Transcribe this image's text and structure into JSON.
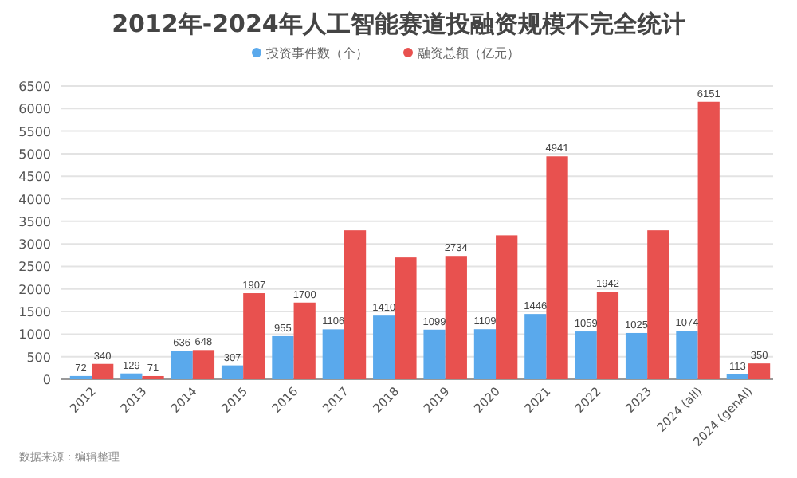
{
  "chart_data": {
    "type": "bar",
    "title": "2012年-2024年人工智能赛道投融资规模不完全统计",
    "categories": [
      "2012",
      "2013",
      "2014",
      "2015",
      "2016",
      "2017",
      "2018",
      "2019",
      "2020",
      "2021",
      "2022",
      "2023",
      "2024 (all)",
      "2024 (genAI)"
    ],
    "series": [
      {
        "name": "投资事件数（个）",
        "color": "#5aa9ec",
        "values": [
          72,
          129,
          636,
          307,
          955,
          1106,
          1410,
          1099,
          1109,
          1446,
          1059,
          1025,
          1074,
          113
        ],
        "value_labels": [
          "72",
          "129",
          "636",
          "307",
          "955",
          "1106",
          "1410",
          "1099",
          "1109",
          "1446",
          "1059",
          "1025",
          "1074",
          "113"
        ]
      },
      {
        "name": "融资总额（亿元）",
        "color": "#e8514f",
        "values": [
          340,
          71,
          648,
          1907,
          1700,
          3300,
          2700,
          2734,
          3190,
          4941,
          1942,
          3300,
          6151,
          350
        ],
        "value_labels": [
          "340",
          "71",
          "648",
          "1907",
          "1700",
          null,
          null,
          "2734",
          null,
          "4941",
          "1942",
          null,
          "6151",
          "350"
        ]
      }
    ],
    "ylim": [
      0,
      6500
    ],
    "yticks": [
      0,
      500,
      1000,
      1500,
      2000,
      2500,
      3000,
      3500,
      4000,
      4500,
      5000,
      5500,
      6000,
      6500
    ],
    "grid": "y",
    "legend": "top",
    "annotations": [
      "数据来源：编辑整理"
    ]
  }
}
